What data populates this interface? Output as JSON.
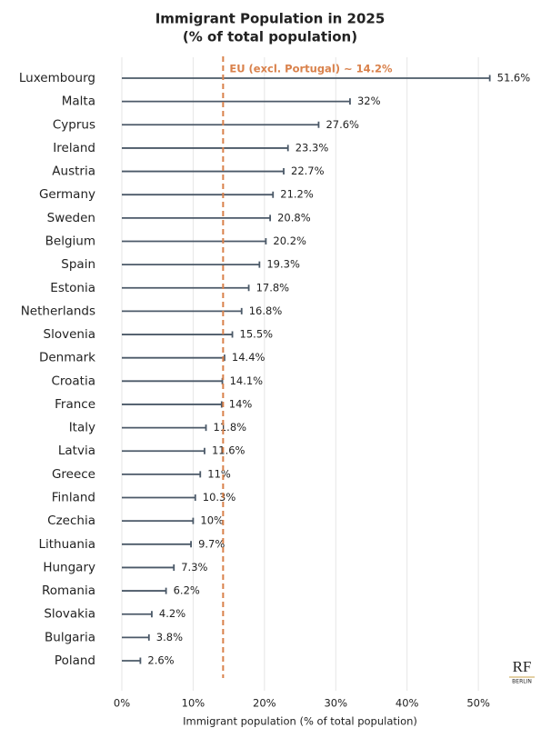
{
  "chart_data": {
    "type": "bar",
    "orientation": "horizontal",
    "title": "Immigrant Population in 2025",
    "subtitle": "(% of total population)",
    "xlabel": "Immigrant population (% of total population)",
    "categories": [
      "Luxembourg",
      "Malta",
      "Cyprus",
      "Ireland",
      "Austria",
      "Germany",
      "Sweden",
      "Belgium",
      "Spain",
      "Estonia",
      "Netherlands",
      "Slovenia",
      "Denmark",
      "Croatia",
      "France",
      "Italy",
      "Latvia",
      "Greece",
      "Finland",
      "Czechia",
      "Lithuania",
      "Hungary",
      "Romania",
      "Slovakia",
      "Bulgaria",
      "Poland"
    ],
    "values": [
      51.6,
      32,
      27.6,
      23.3,
      22.7,
      21.2,
      20.8,
      20.2,
      19.3,
      17.8,
      16.8,
      15.5,
      14.4,
      14.1,
      14,
      11.8,
      11.6,
      11,
      10.3,
      10,
      9.7,
      7.3,
      6.2,
      4.2,
      3.8,
      2.6
    ],
    "value_labels": [
      "51.6%",
      "32%",
      "27.6%",
      "23.3%",
      "22.7%",
      "21.2%",
      "20.8%",
      "20.2%",
      "19.3%",
      "17.8%",
      "16.8%",
      "15.5%",
      "14.4%",
      "14.1%",
      "14%",
      "11.8%",
      "11.6%",
      "11%",
      "10.3%",
      "10%",
      "9.7%",
      "7.3%",
      "6.2%",
      "4.2%",
      "3.8%",
      "2.6%"
    ],
    "color": "#4b5968",
    "xlim": [
      0,
      57
    ],
    "xticks": [
      {
        "value": 0,
        "label": "0%"
      },
      {
        "value": 10,
        "label": "10%"
      },
      {
        "value": 20,
        "label": "20%"
      },
      {
        "value": 30,
        "label": "30%"
      },
      {
        "value": 40,
        "label": "40%"
      },
      {
        "value": 50,
        "label": "50%"
      }
    ],
    "grid": true,
    "reference_line": {
      "value": 14.2,
      "label": "EU (excl. Portugal) ~ 14.2%",
      "color": "#d9814b"
    },
    "logo": "RF",
    "logo_sub": "BERLIN"
  }
}
